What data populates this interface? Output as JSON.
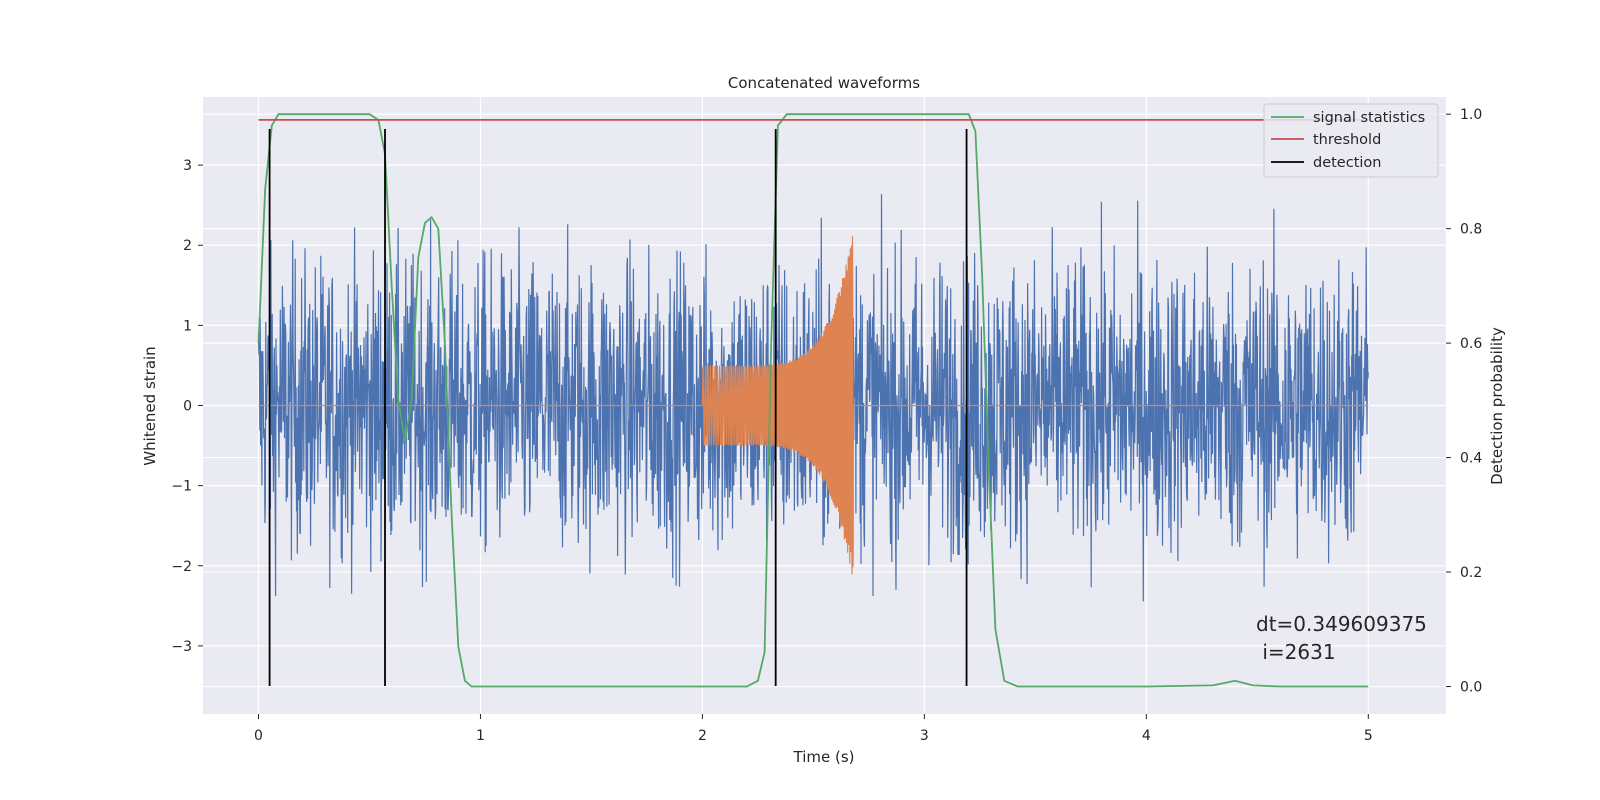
{
  "chart_data": {
    "type": "line",
    "title": "Concatenated waveforms",
    "xlabel": "Time (s)",
    "ylabel": "Whitened strain",
    "y2label": "Detection probability",
    "xlim": [
      -0.25,
      5.35
    ],
    "ylim": [
      -3.85,
      3.85
    ],
    "y2lim": [
      -0.048,
      1.03
    ],
    "xticks": [
      0,
      1,
      2,
      3,
      4,
      5
    ],
    "xtick_labels": [
      "0",
      "1",
      "2",
      "3",
      "4",
      "5"
    ],
    "yticks": [
      -3,
      -2,
      -1,
      0,
      1,
      2,
      3
    ],
    "ytick_labels": [
      "−3",
      "−2",
      "−1",
      "0",
      "1",
      "2",
      "3"
    ],
    "y2ticks": [
      0.0,
      0.2,
      0.4,
      0.6,
      0.8,
      1.0
    ],
    "y2tick_labels": [
      "0.0",
      "0.2",
      "0.4",
      "0.6",
      "0.8",
      "1.0"
    ],
    "grid": true,
    "legend_position": "top-right",
    "annotation_line1": "dt=0.349609375",
    "annotation_line2": " i=2631",
    "noise": {
      "x_start": 0,
      "x_end": 5,
      "color": "#4c72b0",
      "amplitude_max": 3.4
    },
    "chirp": {
      "x_start": 2.0,
      "x_end": 2.68,
      "color": "#dd8452",
      "amplitude_start": 0.5,
      "amplitude_peak": 2.2
    },
    "series": [
      {
        "name": "signal statistics",
        "color": "#55a868",
        "axis": "right",
        "x": [
          0.0,
          0.03,
          0.06,
          0.09,
          0.12,
          0.2,
          0.3,
          0.4,
          0.5,
          0.54,
          0.57,
          0.6,
          0.63,
          0.66,
          0.69,
          0.72,
          0.75,
          0.78,
          0.81,
          0.84,
          0.87,
          0.9,
          0.93,
          0.96,
          1.0,
          1.5,
          2.0,
          2.2,
          2.25,
          2.28,
          2.31,
          2.34,
          2.38,
          2.45,
          2.6,
          3.0,
          3.15,
          3.2,
          3.23,
          3.26,
          3.29,
          3.32,
          3.36,
          3.42,
          3.6,
          4.0,
          4.3,
          4.4,
          4.48,
          4.6,
          5.0
        ],
        "y": [
          0.6,
          0.87,
          0.98,
          1.0,
          1.0,
          1.0,
          1.0,
          1.0,
          1.0,
          0.99,
          0.93,
          0.7,
          0.5,
          0.43,
          0.5,
          0.75,
          0.81,
          0.82,
          0.8,
          0.6,
          0.3,
          0.07,
          0.01,
          0.0,
          0.0,
          0.0,
          0.0,
          0.0,
          0.01,
          0.06,
          0.6,
          0.98,
          1.0,
          1.0,
          1.0,
          1.0,
          1.0,
          1.0,
          0.97,
          0.72,
          0.38,
          0.1,
          0.01,
          0.0,
          0.0,
          0.0,
          0.002,
          0.01,
          0.002,
          0.0,
          0.0
        ]
      },
      {
        "name": "threshold",
        "color": "#c44e52",
        "axis": "right",
        "x": [
          0,
          5
        ],
        "y": [
          0.99,
          0.99
        ]
      },
      {
        "name": "detection",
        "color": "#000000",
        "axis": "left",
        "x": [
          0.05,
          0.57,
          2.33,
          3.19
        ],
        "y_range": [
          -3.5,
          3.45
        ]
      }
    ]
  }
}
